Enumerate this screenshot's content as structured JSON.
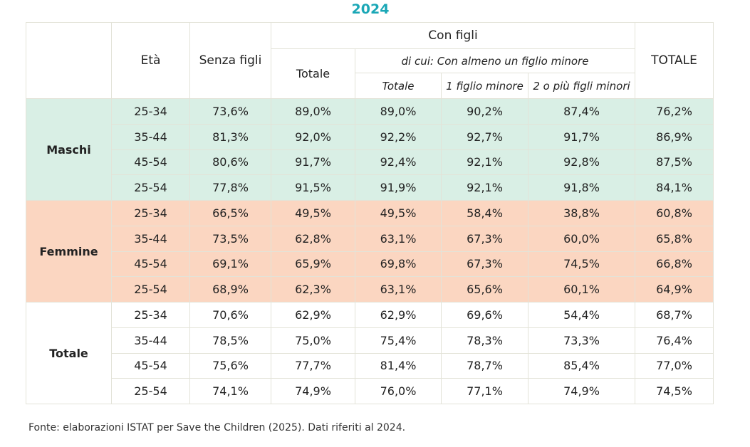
{
  "title": "2024",
  "header": {
    "eta": "Età",
    "senza_figli": "Senza figli",
    "con_figli": "Con figli",
    "di_cui": "di cui: Con almeno un figlio minore",
    "totale_con_figli": "Totale",
    "totale_di_cui": "Totale",
    "un_figlio": "1 figlio minore",
    "due_piu": "2 o più figli minori",
    "totale": "TOTALE"
  },
  "groups": [
    {
      "name": "Maschi",
      "rows": [
        {
          "eta": "25-34",
          "senza": "73,6%",
          "tot": "89,0%",
          "dc_tot": "89,0%",
          "uno": "90,2%",
          "due": "87,4%",
          "totale": "76,2%"
        },
        {
          "eta": "35-44",
          "senza": "81,3%",
          "tot": "92,0%",
          "dc_tot": "92,2%",
          "uno": "92,7%",
          "due": "91,7%",
          "totale": "86,9%"
        },
        {
          "eta": "45-54",
          "senza": "80,6%",
          "tot": "91,7%",
          "dc_tot": "92,4%",
          "uno": "92,1%",
          "due": "92,8%",
          "totale": "87,5%"
        },
        {
          "eta": "25-54",
          "senza": "77,8%",
          "tot": "91,5%",
          "dc_tot": "91,9%",
          "uno": "92,1%",
          "due": "91,8%",
          "totale": "84,1%"
        }
      ]
    },
    {
      "name": "Femmine",
      "rows": [
        {
          "eta": "25-34",
          "senza": "66,5%",
          "tot": "49,5%",
          "dc_tot": "49,5%",
          "uno": "58,4%",
          "due": "38,8%",
          "totale": "60,8%"
        },
        {
          "eta": "35-44",
          "senza": "73,5%",
          "tot": "62,8%",
          "dc_tot": "63,1%",
          "uno": "67,3%",
          "due": "60,0%",
          "totale": "65,8%"
        },
        {
          "eta": "45-54",
          "senza": "69,1%",
          "tot": "65,9%",
          "dc_tot": "69,8%",
          "uno": "67,3%",
          "due": "74,5%",
          "totale": "66,8%"
        },
        {
          "eta": "25-54",
          "senza": "68,9%",
          "tot": "62,3%",
          "dc_tot": "63,1%",
          "uno": "65,6%",
          "due": "60,1%",
          "totale": "64,9%"
        }
      ]
    },
    {
      "name": "Totale",
      "rows": [
        {
          "eta": "25-34",
          "senza": "70,6%",
          "tot": "62,9%",
          "dc_tot": "62,9%",
          "uno": "69,6%",
          "due": "54,4%",
          "totale": "68,7%"
        },
        {
          "eta": "35-44",
          "senza": "78,5%",
          "tot": "75,0%",
          "dc_tot": "75,4%",
          "uno": "78,3%",
          "due": "73,3%",
          "totale": "76,4%"
        },
        {
          "eta": "45-54",
          "senza": "75,6%",
          "tot": "77,7%",
          "dc_tot": "81,4%",
          "uno": "78,7%",
          "due": "85,4%",
          "totale": "77,0%"
        },
        {
          "eta": "25-54",
          "senza": "74,1%",
          "tot": "74,9%",
          "dc_tot": "76,0%",
          "uno": "77,1%",
          "due": "74,9%",
          "totale": "74,5%"
        }
      ]
    }
  ],
  "footnote": "Fonte: elaborazioni ISTAT per Save the Children (2025). Dati riferiti al 2024.",
  "colors": {
    "title": "#1aa7b6",
    "maschi_bg": "#d9efe5",
    "femmine_bg": "#fbd6c1",
    "border": "#e3e3d8"
  }
}
